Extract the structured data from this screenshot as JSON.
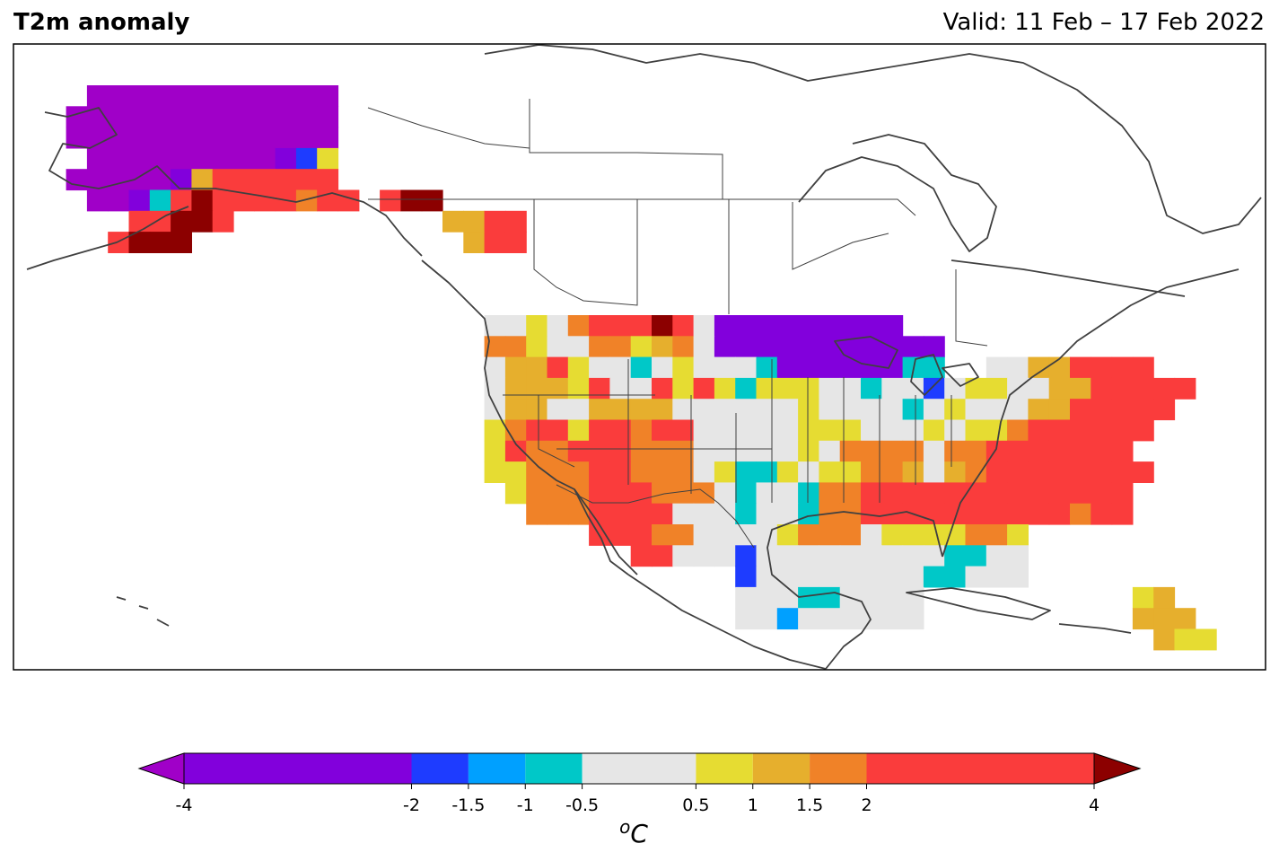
{
  "title": "T2m anomaly",
  "valid": "Valid: 11 Feb – 17 Feb 2022",
  "colorbar": {
    "unit_base": "C",
    "unit_sup": "o",
    "bounds": [
      -4,
      -2,
      -1.5,
      -1,
      -0.5,
      0.5,
      1,
      1.5,
      2,
      4
    ],
    "tick_labels": [
      "-4",
      "-2",
      "-1.5",
      "-1",
      "-0.5",
      "0.5",
      "1",
      "1.5",
      "2",
      "4"
    ],
    "colors": [
      "#8200dc",
      "#1e3cff",
      "#00a0ff",
      "#00c8c8",
      "#e6e6e6",
      "#e6dc32",
      "#e6af2d",
      "#f08228",
      "#fa3c3c"
    ],
    "under_color": "#a000c8",
    "over_color": "#8c0000"
  },
  "anomaly_legend": {
    "P": "-4 to -2",
    "B": "-2 to -1.5",
    "S": "-1.5 to -1",
    "C": "-1 to -0.5",
    "G": "-0.5 to 0.5",
    "Y": "0.5 to 1",
    "A": "1 to 1.5",
    "O": "1.5 to 2",
    "R": "2 to 4",
    "D": "> 4",
    "V": "< -4"
  },
  "anomaly_rows": [
    "...VVVVVVVVVVVV.....................................................",
    "..VVVVVVVVVVVVV.....................................................",
    "..VVVVVVVVVVVVV.....................................................",
    "...VVVVVVVVVPBY.....................................................",
    "..VVVVVPARRRRRR.....................................................",
    "...VVPCRDRRRRORR.RDD................................................",
    ".....RRDDR..........AARR............................................",
    "....RDDD.............ARR............................................",
    "....................................................................",
    "....................................................................",
    "....................................................................",
    "....................................................................",
    "....................................................................",
    "...................................................................",
    "......................GGYGORRRDRGPPPPPPPPP..........................",
    "......................OOYGGOOYAOGPPPPPPPPPPP........................",
    "......................GAARYGGCGYGGGCPPPPPPCC..GGAARRRR..............",
    "......................GAAAYRGGRYRYCYYYGGCGGBGYYGGAARRRRR............",
    "......................GAAGGAAAAGGGGGGYGGGGCGYGGGAARRRRR.............",
    "......................YORRYRRORRGGGGGYYYGGGYGYYORRRRRR..............",
    "......................YROORRROOOGGGGGYGOOOOGOORRRRRRR...............",
    "......................YYOOORROOOGYCCYGYYOOAGAORRRRRRRR..............",
    ".......................YOOORRROOOGCGGCOORRRRRRRRRRRRR...............",
    "........................OOORRRRGGGCGGCOORRRRRRRRRRORR...............",
    "...........................RRROOGGGGYOOOGYYYYOOY....................",
    ".............................RRGGGBGGGGGGGGGCCGG....................",
    "..................................BGGGGGGGGCCGGG....................",
    "..................................GGGCCGGGG..........YA.............",
    "..................................GGSGGGGGG..........AAA............",
    "......................................................AYY..........."
  ],
  "alaska_rows": [
    "...VVVVVVVVVVVV.......",
    "..VVVVVVVVVVVVV.......",
    "..VVVVVVVVVVVVV.......",
    "...VVVVVVVVVPBY.......",
    "..VVVVVPARRRRRR.......",
    "...VVPCRDRRRRORR.RDD..",
    ".....RRDDR..........AARR",
    "....RDDD.............ARR"
  ]
}
